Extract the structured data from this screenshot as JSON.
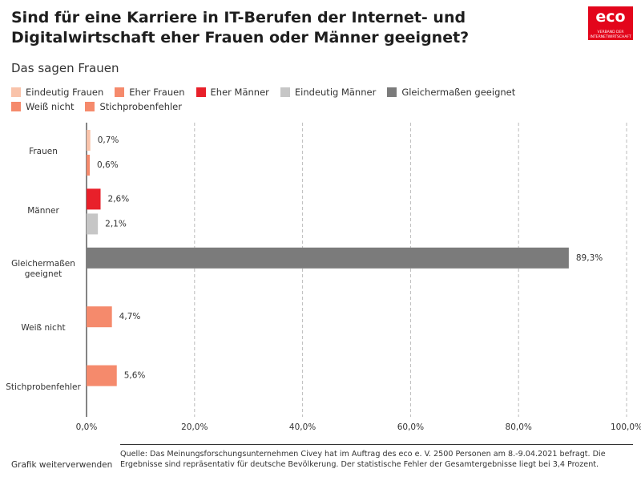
{
  "chart_data": {
    "type": "bar",
    "title": "Sind für eine Karriere in IT-Berufen der Internet- und Digitalwirtschaft eher Frauen oder Männer geeignet?",
    "subtitle": "Das sagen Frauen",
    "orientation": "horizontal",
    "categories": [
      "Frauen",
      "Männer",
      "Gleichermaßen geeignet",
      "Weiß nicht",
      "Stichprobenfehler"
    ],
    "series": [
      {
        "name": "Eindeutig Frauen",
        "color": "#f9c3aa",
        "values": [
          0.7,
          null,
          null,
          null,
          null
        ],
        "value_labels": [
          "0,7%",
          null,
          null,
          null,
          null
        ]
      },
      {
        "name": "Eher Frauen",
        "color": "#f58a6c",
        "values": [
          0.6,
          null,
          null,
          null,
          null
        ],
        "value_labels": [
          "0,6%",
          null,
          null,
          null,
          null
        ]
      },
      {
        "name": "Eher Männer",
        "color": "#e8202a",
        "values": [
          null,
          2.6,
          null,
          null,
          null
        ],
        "value_labels": [
          null,
          "2,6%",
          null,
          null,
          null
        ]
      },
      {
        "name": "Eindeutig Männer",
        "color": "#c6c6c6",
        "values": [
          null,
          2.1,
          null,
          null,
          null
        ],
        "value_labels": [
          null,
          "2,1%",
          null,
          null,
          null
        ]
      },
      {
        "name": "Gleichermaßen geeignet",
        "color": "#7b7b7b",
        "values": [
          null,
          null,
          89.3,
          null,
          null
        ],
        "value_labels": [
          null,
          null,
          "89,3%",
          null,
          null
        ]
      },
      {
        "name": "Weiß nicht",
        "color": "#f58a6c",
        "values": [
          null,
          null,
          null,
          4.7,
          null
        ],
        "value_labels": [
          null,
          null,
          null,
          "4,7%",
          null
        ]
      },
      {
        "name": "Stichprobenfehler",
        "color": "#f58a6c",
        "values": [
          null,
          null,
          null,
          null,
          5.6
        ],
        "value_labels": [
          null,
          null,
          null,
          null,
          "5,6%"
        ]
      }
    ],
    "xlim": [
      0,
      100
    ],
    "xticks": [
      {
        "value": 0,
        "label": "0,0%"
      },
      {
        "value": 20,
        "label": "20,0%"
      },
      {
        "value": 40,
        "label": "40,0%"
      },
      {
        "value": 60,
        "label": "60,0%"
      },
      {
        "value": 80,
        "label": "80,0%"
      },
      {
        "value": 100,
        "label": "100,0%"
      }
    ],
    "grid": true,
    "legend": "top"
  },
  "logo": {
    "name": "eco",
    "tagline": "VERBAND DER INTERNETWIRTSCHAFT"
  },
  "footer": {
    "link": "Grafik weiterverwenden",
    "source": "Quelle: Das Meinungsforschungsunternehmen Civey hat im Auftrag des eco e. V. 2500 Personen am 8.-9.04.2021 befragt. Die Ergebnisse sind repräsentativ für deutsche Bevölkerung. Der statistische Fehler der Gesamtergebnisse liegt bei 3,4 Prozent."
  }
}
